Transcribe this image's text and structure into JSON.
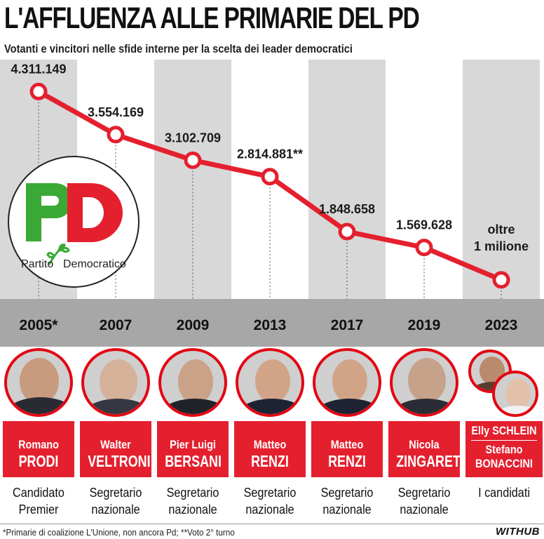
{
  "title": "L'AFFLUENZA ALLE PRIMARIE DEL PD",
  "subtitle": "Votanti e vincitori nelle sfide interne per la scelta dei leader democratici",
  "chart_data": {
    "type": "line",
    "title": "L'AFFLUENZA ALLE PRIMARIE DEL PD",
    "subtitle": "Votanti e vincitori nelle sfide interne per la scelta dei leader democratici",
    "categories": [
      "2005*",
      "2007",
      "2009",
      "2013",
      "2017",
      "2019",
      "2023"
    ],
    "values": [
      4311149,
      3554169,
      3102709,
      2814881,
      1848658,
      1569628,
      1000000
    ],
    "value_labels": [
      "4.311.149",
      "3.554.169",
      "3.102.709",
      "2.814.881**",
      "1.848.658",
      "1.569.628",
      "oltre 1 milione"
    ],
    "line_color": "#e4202e",
    "ylim": [
      800000,
      4600000
    ]
  },
  "logo": {
    "party": "Partito Democratico",
    "text_left": "Partito",
    "text_right": "Democratico"
  },
  "columns": [
    {
      "first": "Romano",
      "last": "PRODI",
      "role": [
        "Candidato",
        "Premier"
      ]
    },
    {
      "first": "Walter",
      "last": "VELTRONI",
      "role": [
        "Segretario",
        "nazionale"
      ]
    },
    {
      "first": "Pier Luigi",
      "last": "BERSANI",
      "role": [
        "Segretario",
        "nazionale"
      ]
    },
    {
      "first": "Matteo",
      "last": "RENZI",
      "role": [
        "Segretario",
        "nazionale"
      ]
    },
    {
      "first": "Matteo",
      "last": "RENZI",
      "role": [
        "Segretario",
        "nazionale"
      ]
    },
    {
      "first": "Nicola",
      "last": "ZINGARETTI",
      "role": [
        "Segretario",
        "nazionale"
      ]
    }
  ],
  "last_column": {
    "name1": "Elly SCHLEIN",
    "name2": "Stefano",
    "name3": "BONACCINI",
    "role": "I candidati"
  },
  "footnote": "*Primarie di coalizione L'Unione, non ancora Pd; **Voto 2° turno",
  "brand": "WITHUB",
  "colors": {
    "accent": "#e4202e",
    "column_bg": "#d8d8d8",
    "year_band": "#a7a7a7",
    "pd_green": "#3aa935"
  }
}
